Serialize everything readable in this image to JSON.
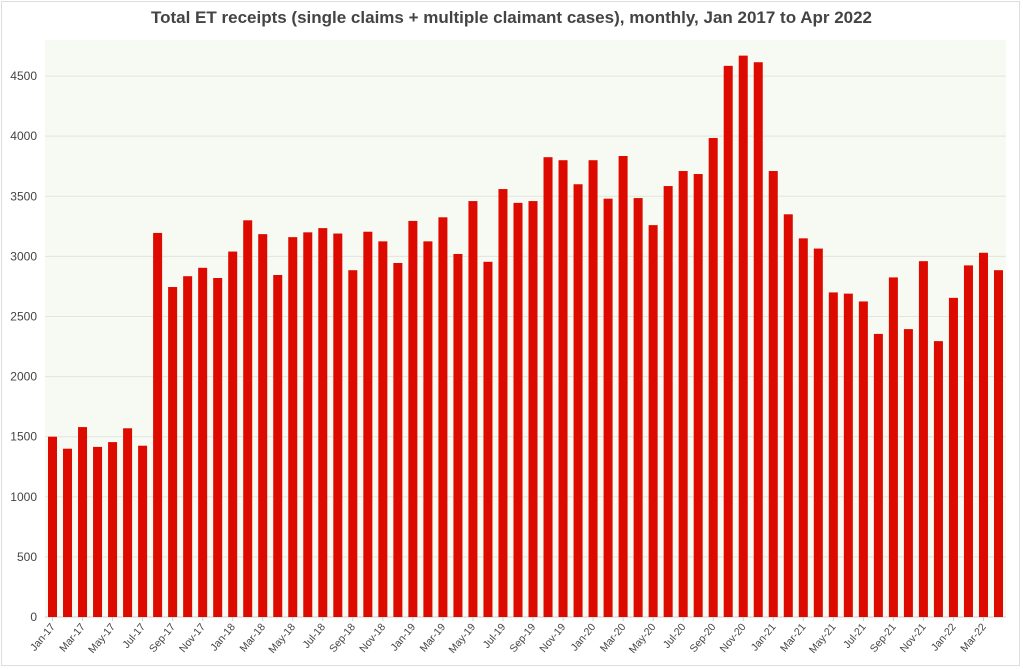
{
  "chart_data": {
    "type": "bar",
    "title": "Total ET receipts (single claims + multiple claimant cases), monthly, Jan 2017 to Apr 2022",
    "xlabel": "",
    "ylabel": "",
    "ylim": [
      0,
      4800
    ],
    "yticks": [
      0,
      500,
      1000,
      1500,
      2000,
      2500,
      3000,
      3500,
      4000,
      4500
    ],
    "grid": true,
    "bar_color": "#dd0a00",
    "plot_background": "#f7f9f3",
    "categories": [
      "Jan-17",
      "Feb-17",
      "Mar-17",
      "Apr-17",
      "May-17",
      "Jun-17",
      "Jul-17",
      "Aug-17",
      "Sep-17",
      "Oct-17",
      "Nov-17",
      "Dec-17",
      "Jan-18",
      "Feb-18",
      "Mar-18",
      "Apr-18",
      "May-18",
      "Jun-18",
      "Jul-18",
      "Aug-18",
      "Sep-18",
      "Oct-18",
      "Nov-18",
      "Dec-18",
      "Jan-19",
      "Feb-19",
      "Mar-19",
      "Apr-19",
      "May-19",
      "Jun-19",
      "Jul-19",
      "Aug-19",
      "Sep-19",
      "Oct-19",
      "Nov-19",
      "Dec-19",
      "Jan-20",
      "Feb-20",
      "Mar-20",
      "Apr-20",
      "May-20",
      "Jun-20",
      "Jul-20",
      "Aug-20",
      "Sep-20",
      "Oct-20",
      "Nov-20",
      "Dec-20",
      "Jan-21",
      "Feb-21",
      "Mar-21",
      "Apr-21",
      "May-21",
      "Jun-21",
      "Jul-21",
      "Aug-21",
      "Sep-21",
      "Oct-21",
      "Nov-21",
      "Dec-21",
      "Jan-22",
      "Feb-22",
      "Mar-22",
      "Apr-22"
    ],
    "values": [
      1500,
      1400,
      1580,
      1415,
      1455,
      1570,
      1425,
      3195,
      2745,
      2835,
      2905,
      2820,
      3040,
      3300,
      3185,
      2845,
      3160,
      3200,
      3235,
      3190,
      2885,
      3205,
      3125,
      2945,
      3295,
      3125,
      3325,
      3020,
      3460,
      2955,
      3560,
      3445,
      3460,
      3825,
      3800,
      3600,
      3800,
      3480,
      3835,
      3485,
      3260,
      3585,
      3710,
      3685,
      3985,
      4585,
      4670,
      4615,
      3710,
      3350,
      3150,
      3065,
      2700,
      2690,
      2625,
      2355,
      2825,
      2395,
      2960,
      2295,
      2655,
      2925,
      3030,
      2885
    ]
  }
}
